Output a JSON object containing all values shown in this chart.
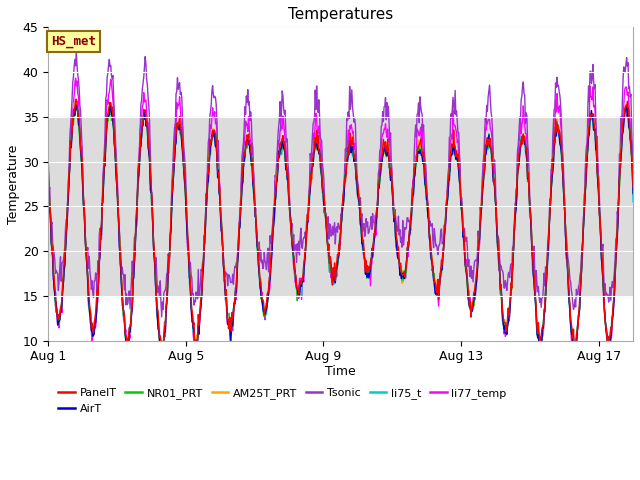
{
  "title": "Temperatures",
  "xlabel": "Time",
  "ylabel": "Temperature",
  "ylim": [
    10,
    45
  ],
  "yticks": [
    10,
    15,
    20,
    25,
    30,
    35,
    40,
    45
  ],
  "xtick_labels": [
    "Aug 1",
    "Aug 5",
    "Aug 9",
    "Aug 13",
    "Aug 17"
  ],
  "xtick_positions": [
    0,
    4,
    8,
    12,
    16
  ],
  "annotation_text": "HS_met",
  "annotation_text_color": "#8B0000",
  "annotation_box_facecolor": "#FFFFA0",
  "annotation_box_edgecolor": "#8B6914",
  "series_names": [
    "PanelT",
    "AirT",
    "NR01_PRT",
    "AM25T_PRT",
    "Tsonic",
    "li75_t",
    "li77_temp"
  ],
  "series_colors": [
    "#FF0000",
    "#0000CC",
    "#00CC00",
    "#FFA500",
    "#9933CC",
    "#00CCCC",
    "#FF00FF"
  ],
  "background_shade_ymin": 15,
  "background_shade_ymax": 35,
  "background_shade_color": "#DCDCDC",
  "n_days": 17,
  "points_per_day": 48,
  "title_fontsize": 11,
  "tick_fontsize": 9,
  "label_fontsize": 9,
  "legend_fontsize": 8
}
